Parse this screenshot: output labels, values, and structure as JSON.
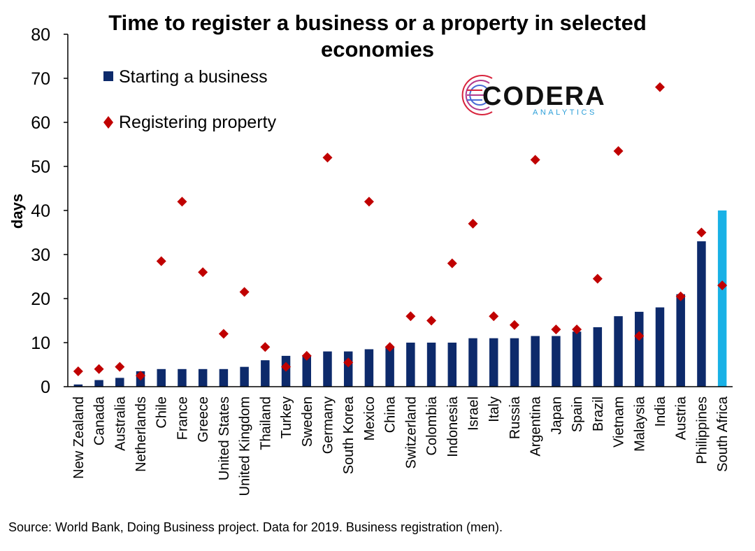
{
  "chart_data": {
    "type": "bar",
    "title": "Time to register a business or a property in selected economies",
    "title_lines": [
      "Time to register a business or a property in selected",
      "economies"
    ],
    "ylabel": "days",
    "xlabel": "",
    "ylim": [
      0,
      80
    ],
    "yticks": [
      0,
      10,
      20,
      30,
      40,
      50,
      60,
      70,
      80
    ],
    "grid": false,
    "legend_position": "top-left",
    "categories": [
      "New Zealand",
      "Canada",
      "Australia",
      "Netherlands",
      "Chile",
      "France",
      "Greece",
      "United States",
      "United Kingdom",
      "Thailand",
      "Turkey",
      "Sweden",
      "Germany",
      "South Korea",
      "Mexico",
      "China",
      "Switzerland",
      "Colombia",
      "Indonesia",
      "Israel",
      "Italy",
      "Russia",
      "Argentina",
      "Japan",
      "Spain",
      "Brazil",
      "Vietnam",
      "Malaysia",
      "India",
      "Austria",
      "Philippines",
      "South Africa"
    ],
    "series": [
      {
        "name": "Starting a business",
        "type": "bar",
        "color": "#0d2a6b",
        "highlight": {
          "category": "South Africa",
          "color": "#19b1e6"
        },
        "values": [
          0.5,
          1.5,
          2,
          3.5,
          4,
          4,
          4,
          4,
          4.5,
          6,
          7,
          7,
          8,
          8,
          8.5,
          9,
          10,
          10,
          10,
          11,
          11,
          11,
          11.5,
          11.5,
          12.5,
          13.5,
          16,
          17,
          18,
          21,
          33,
          40
        ]
      },
      {
        "name": "Registering property",
        "type": "scatter",
        "marker": "diamond",
        "color": "#c00000",
        "values": [
          3.5,
          4,
          4.5,
          2.5,
          28.5,
          42,
          26,
          12,
          21.5,
          9,
          4.5,
          7,
          52,
          5.5,
          42,
          9,
          16,
          15,
          28,
          37,
          16,
          14,
          51.5,
          13,
          13,
          24.5,
          53.5,
          11.5,
          68,
          20.5,
          35,
          23
        ]
      }
    ]
  },
  "logo": {
    "name": "CODERA",
    "tagline": "ANALYTICS"
  },
  "source": "Source: World Bank, Doing Business project. Data for 2019.  Business registration (men)."
}
